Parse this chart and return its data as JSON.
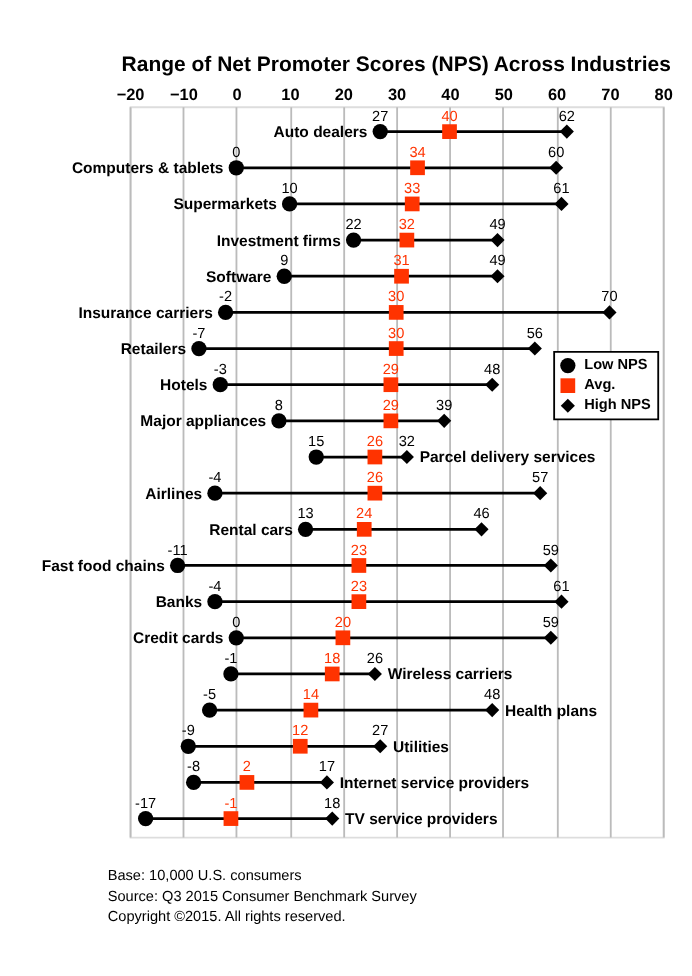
{
  "chart_data": {
    "type": "scatter",
    "orientation": "horizontal",
    "title": "Range of Net Promoter Scores (NPS) Across Industries",
    "categories": [
      "Auto dealers",
      "Computers & tablets",
      "Supermarkets",
      "Investment firms",
      "Software",
      "Insurance carriers",
      "Retailers",
      "Hotels",
      "Major appliances",
      "Parcel delivery services",
      "Airlines",
      "Rental cars",
      "Fast food chains",
      "Banks",
      "Credit cards",
      "Wireless carriers",
      "Health plans",
      "Utilities",
      "Internet service providers",
      "TV service providers"
    ],
    "series": [
      {
        "name": "Low NPS",
        "color": "#000000",
        "marker": "circle",
        "values": [
          27,
          0,
          10,
          22,
          9,
          -2,
          -7,
          -3,
          8,
          15,
          -4,
          13,
          -11,
          -4,
          0,
          -1,
          -5,
          -9,
          -8,
          -17
        ]
      },
      {
        "name": "Avg.",
        "color": "#ff3300",
        "marker": "square",
        "values": [
          40,
          34,
          33,
          32,
          31,
          30,
          30,
          29,
          29,
          26,
          26,
          24,
          23,
          23,
          20,
          18,
          14,
          12,
          2,
          -1
        ]
      },
      {
        "name": "High NPS",
        "color": "#000000",
        "marker": "diamond",
        "values": [
          62,
          60,
          61,
          49,
          49,
          70,
          56,
          48,
          39,
          32,
          57,
          46,
          59,
          61,
          59,
          26,
          48,
          27,
          17,
          18
        ]
      }
    ],
    "xlim": [
      -20,
      80
    ],
    "xticks": [
      -20,
      -10,
      0,
      10,
      20,
      30,
      40,
      50,
      60,
      70,
      80
    ],
    "grid": "x",
    "data_labels": true,
    "legend": "top right",
    "annotations": [
      "Base:      10,000 U.S. consumers",
      "Source:   Q3 2015 Consumer Benchmark Survey",
      "Copyright ©2015. All rights reserved."
    ]
  }
}
